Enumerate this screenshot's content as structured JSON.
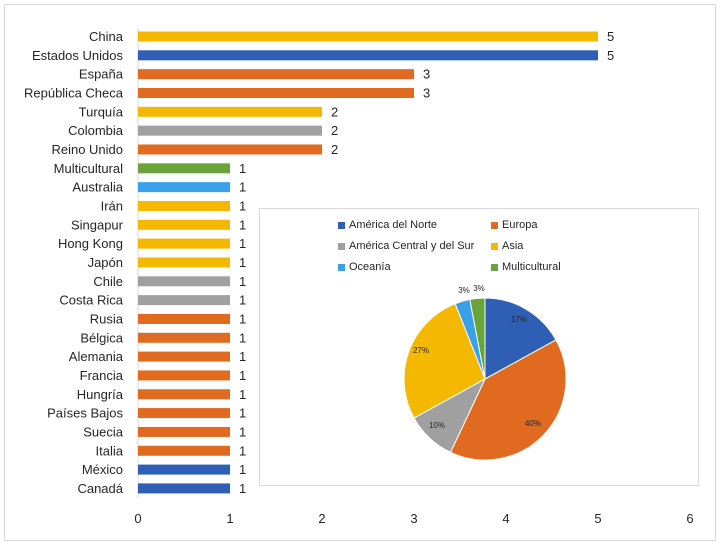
{
  "chart_data": [
    {
      "type": "bar",
      "orientation": "horizontal",
      "categories": [
        "China",
        "Estados Unidos",
        "España",
        "República Checa",
        "Turquía",
        "Colombia",
        "Reino Unido",
        "Multicultural",
        "Australia",
        "Irán",
        "Singapur",
        "Hong Kong",
        "Japón",
        "Chile",
        "Costa Rica",
        "Rusia",
        "Bélgica",
        "Alemania",
        "Francia",
        "Hungría",
        "Países Bajos",
        "Suecia",
        "Italia",
        "México",
        "Canadá"
      ],
      "values": [
        5,
        5,
        3,
        3,
        2,
        2,
        2,
        1,
        1,
        1,
        1,
        1,
        1,
        1,
        1,
        1,
        1,
        1,
        1,
        1,
        1,
        1,
        1,
        1,
        1
      ],
      "bar_colors": [
        "#f5b800",
        "#2e5fb4",
        "#e06a1f",
        "#e06a1f",
        "#f5b800",
        "#a0a0a0",
        "#e06a1f",
        "#6aa33a",
        "#3aa0e8",
        "#f5b800",
        "#f5b800",
        "#f5b800",
        "#f5b800",
        "#a0a0a0",
        "#a0a0a0",
        "#e06a1f",
        "#e06a1f",
        "#e06a1f",
        "#e06a1f",
        "#e06a1f",
        "#e06a1f",
        "#e06a1f",
        "#e06a1f",
        "#2e5fb4",
        "#2e5fb4"
      ],
      "xlim": [
        0,
        6
      ],
      "xticks": [
        "0",
        "1",
        "2",
        "3",
        "4",
        "5",
        "6"
      ],
      "data_labels": [
        "5",
        "5",
        "3",
        "3",
        "2",
        "2",
        "2",
        "1",
        "1",
        "1",
        "1",
        "1",
        "1",
        "1",
        "1",
        "1",
        "1",
        "1",
        "1",
        "1",
        "1",
        "1",
        "1",
        "1",
        "1"
      ],
      "grid": false
    },
    {
      "type": "pie",
      "legend_position": "top",
      "slices": [
        {
          "name": "América del Norte",
          "value": 17,
          "label": "17%",
          "color": "#2e5fb4"
        },
        {
          "name": "Europa",
          "value": 40,
          "label": "40%",
          "color": "#e06a1f"
        },
        {
          "name": "América Central y del Sur",
          "value": 10,
          "label": "10%",
          "color": "#a0a0a0"
        },
        {
          "name": "Asia",
          "value": 27,
          "label": "27%",
          "color": "#f5b800"
        },
        {
          "name": "Oceanía",
          "value": 3,
          "label": "3%",
          "color": "#3aa0e8"
        },
        {
          "name": "Multicultural",
          "value": 3,
          "label": "3%",
          "color": "#6aa33a"
        }
      ]
    }
  ]
}
